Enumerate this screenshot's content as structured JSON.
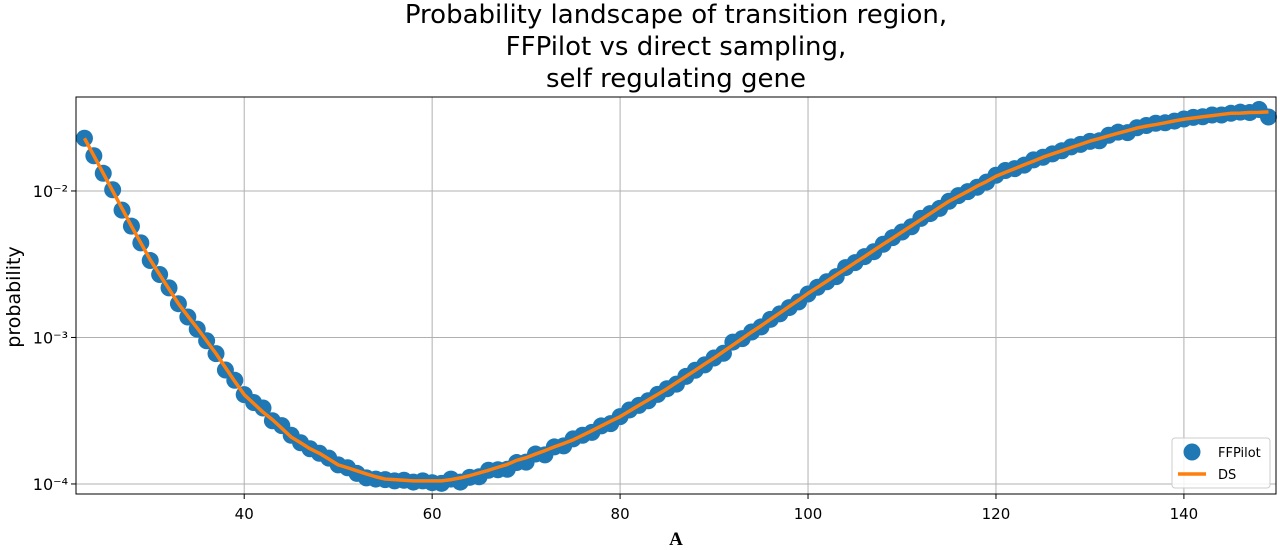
{
  "chart_data": {
    "type": "line",
    "title": [
      "Probability landscape of transition region,",
      "FFPilot vs direct sampling,",
      "self regulating gene"
    ],
    "xlabel": "A",
    "ylabel": "probability",
    "log_y": true,
    "grid": true,
    "legend": "lower right",
    "xlim": [
      22.1,
      149.8
    ],
    "xticks": [
      40,
      60,
      80,
      100,
      120,
      140
    ],
    "ylim": [
      8.54e-05,
      0.0438
    ],
    "yticks": [
      {
        "value": 0.0001,
        "label": "10⁻⁴"
      },
      {
        "value": 0.001,
        "label": "10⁻³"
      },
      {
        "value": 0.01,
        "label": "10⁻²"
      }
    ],
    "x": [
      23,
      24,
      25,
      26,
      27,
      28,
      29,
      30,
      31,
      32,
      33,
      34,
      35,
      36,
      37,
      38,
      39,
      40,
      41,
      42,
      43,
      44,
      45,
      46,
      47,
      48,
      49,
      50,
      51,
      52,
      53,
      54,
      55,
      56,
      57,
      58,
      59,
      60,
      61,
      62,
      63,
      64,
      65,
      66,
      67,
      68,
      69,
      70,
      71,
      72,
      73,
      74,
      75,
      76,
      77,
      78,
      79,
      80,
      81,
      82,
      83,
      84,
      85,
      86,
      87,
      88,
      89,
      90,
      91,
      92,
      93,
      94,
      95,
      96,
      97,
      98,
      99,
      100,
      101,
      102,
      103,
      104,
      105,
      106,
      107,
      108,
      109,
      110,
      111,
      112,
      113,
      114,
      115,
      116,
      117,
      118,
      119,
      120,
      121,
      122,
      123,
      124,
      125,
      126,
      127,
      128,
      129,
      130,
      131,
      132,
      133,
      134,
      135,
      136,
      137,
      138,
      139,
      140,
      141,
      142,
      143,
      144,
      145,
      146,
      147,
      148,
      149
    ],
    "series": [
      {
        "name": "FFPilot",
        "color": "#1f77b4",
        "style": "marker",
        "values": [
          0.0229,
          0.0174,
          0.0132,
          0.0102,
          0.0074,
          0.00575,
          0.00442,
          0.00335,
          0.00269,
          0.00218,
          0.0017,
          0.00138,
          0.00114,
          0.00095,
          0.000776,
          0.0006,
          0.00051,
          0.000407,
          0.00036,
          0.00033,
          0.00027,
          0.00025,
          0.000215,
          0.000191,
          0.000174,
          0.000162,
          0.00015,
          0.000135,
          0.000129,
          0.000118,
          0.00011,
          0.000108,
          0.000107,
          0.000105,
          0.000106,
          0.000103,
          0.000105,
          0.000102,
          0.000101,
          0.000108,
          0.000103,
          0.000111,
          0.000112,
          0.000124,
          0.000125,
          0.000126,
          0.00014,
          0.000141,
          0.00016,
          0.000158,
          0.000179,
          0.000182,
          0.000203,
          0.000215,
          0.000225,
          0.000249,
          0.000258,
          0.000288,
          0.00032,
          0.000344,
          0.00037,
          0.000409,
          0.000447,
          0.00048,
          0.000542,
          0.000597,
          0.00065,
          0.000724,
          0.00078,
          0.00093,
          0.000982,
          0.00109,
          0.00118,
          0.00133,
          0.00145,
          0.0016,
          0.00175,
          0.00198,
          0.0022,
          0.0024,
          0.0026,
          0.003,
          0.00324,
          0.00356,
          0.00385,
          0.00433,
          0.0048,
          0.00525,
          0.0057,
          0.0065,
          0.00701,
          0.0076,
          0.00851,
          0.0093,
          0.0099,
          0.0106,
          0.0115,
          0.0128,
          0.0138,
          0.0142,
          0.015,
          0.0163,
          0.017,
          0.0179,
          0.0188,
          0.02,
          0.0208,
          0.0218,
          0.022,
          0.024,
          0.0252,
          0.025,
          0.027,
          0.028,
          0.029,
          0.0292,
          0.03,
          0.031,
          0.0318,
          0.0321,
          0.033,
          0.033,
          0.0339,
          0.0345,
          0.0343,
          0.036,
          0.032
        ]
      },
      {
        "name": "DS",
        "color": "#ff7f0e",
        "style": "line",
        "values": [
          0.0229,
          0.0174,
          0.0132,
          0.01,
          0.0076,
          0.00575,
          0.00442,
          0.00339,
          0.00269,
          0.00214,
          0.0017,
          0.0014,
          0.00116,
          0.00095,
          0.000776,
          0.000624,
          0.000501,
          0.000407,
          0.000355,
          0.000309,
          0.000275,
          0.00024,
          0.000209,
          0.000191,
          0.000174,
          0.000162,
          0.000148,
          0.000135,
          0.000129,
          0.000123,
          0.000117,
          0.000112,
          0.000108,
          0.000107,
          0.000106,
          0.000105,
          0.000105,
          0.000105,
          0.000105,
          0.000107,
          0.00011,
          0.000114,
          0.000119,
          0.000124,
          0.00013,
          0.000136,
          0.000145,
          0.000151,
          0.00016,
          0.000169,
          0.000179,
          0.000189,
          0.0002,
          0.000215,
          0.000231,
          0.000249,
          0.000268,
          0.000288,
          0.000315,
          0.000344,
          0.000375,
          0.000409,
          0.000447,
          0.000492,
          0.000542,
          0.000597,
          0.000658,
          0.000724,
          0.000802,
          0.000887,
          0.000982,
          0.00109,
          0.0012,
          0.00133,
          0.00147,
          0.00163,
          0.0018,
          0.002,
          0.0022,
          0.00242,
          0.00267,
          0.00294,
          0.00324,
          0.00356,
          0.00393,
          0.00433,
          0.00476,
          0.00525,
          0.00578,
          0.00637,
          0.00701,
          0.00773,
          0.00851,
          0.0092,
          0.00995,
          0.0108,
          0.0116,
          0.0126,
          0.0134,
          0.0142,
          0.0151,
          0.016,
          0.017,
          0.0179,
          0.0188,
          0.0198,
          0.0208,
          0.0219,
          0.0228,
          0.0238,
          0.0248,
          0.0258,
          0.0269,
          0.0277,
          0.0284,
          0.0292,
          0.0301,
          0.0309,
          0.0315,
          0.0321,
          0.0327,
          0.0333,
          0.0339,
          0.034,
          0.0343,
          0.0344,
          0.0347
        ]
      }
    ]
  }
}
